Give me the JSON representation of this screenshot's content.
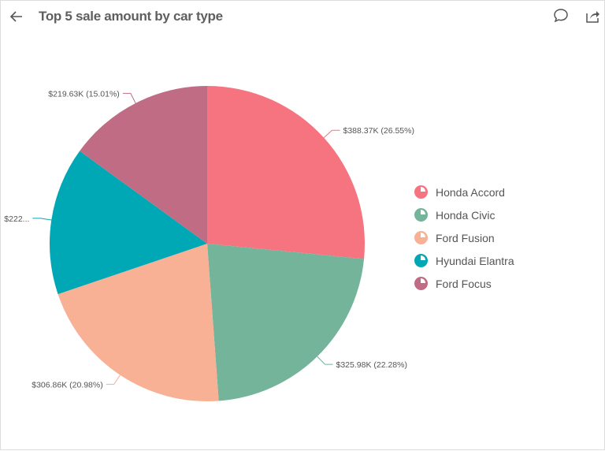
{
  "header": {
    "title": "Top 5 sale amount by car type",
    "back_icon": "arrow-left-icon",
    "comment_icon": "comment-icon",
    "share_icon": "share-icon"
  },
  "chart_data": {
    "type": "pie",
    "title": "Top 5 sale amount by car type",
    "legend_position": "right",
    "start_angle": "top, clockwise",
    "slices": [
      {
        "name": "Honda Accord",
        "value_k": 388.37,
        "percent": 26.55,
        "label": "$388.37K (26.55%)",
        "color": "#f57480"
      },
      {
        "name": "Honda Civic",
        "value_k": 325.98,
        "percent": 22.28,
        "label": "$325.98K (22.28%)",
        "color": "#73b49b"
      },
      {
        "name": "Ford Fusion",
        "value_k": 306.86,
        "percent": 20.98,
        "label": "$306.86K (20.98%)",
        "color": "#f8b195"
      },
      {
        "name": "Hyundai Elantra",
        "value_k": 222,
        "percent": 15.18,
        "label": "$222...",
        "color": "#00a8b5"
      },
      {
        "name": "Ford Focus",
        "value_k": 219.63,
        "percent": 15.01,
        "label": "$219.63K (15.01%)",
        "color": "#c06c84"
      }
    ]
  }
}
